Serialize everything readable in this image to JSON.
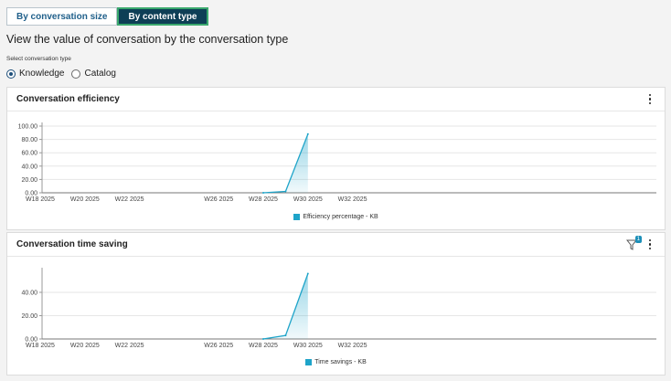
{
  "tabs": [
    {
      "label": "By conversation size",
      "active": false
    },
    {
      "label": "By content type",
      "active": true
    }
  ],
  "page_title": "View the value of conversation by the conversation type",
  "select_label": "Select conversation type",
  "radios": [
    {
      "label": "Knowledge",
      "checked": true
    },
    {
      "label": "Catalog",
      "checked": false
    }
  ],
  "cards": [
    {
      "title": "Conversation efficiency",
      "legend": "Efficiency percentage - KB",
      "filter_badge": null
    },
    {
      "title": "Conversation time saving",
      "legend": "Time savings - KB",
      "filter_badge": "1"
    }
  ],
  "colors": {
    "series": "#1ea4c9",
    "accent": "#0e3f56",
    "active_border": "#3aa86d"
  },
  "chart_data": [
    {
      "type": "area",
      "title": "Conversation efficiency",
      "x": [
        "W18 2025",
        "W19 2025",
        "W20 2025",
        "W21 2025",
        "W22 2025",
        "W23 2025",
        "W24 2025",
        "W25 2025",
        "W26 2025",
        "W27 2025",
        "W28 2025",
        "W29 2025",
        "W30 2025",
        "W31 2025",
        "W32 2025",
        "W33 2025"
      ],
      "x_tick_labels": [
        "W18 2025",
        "W20 2025",
        "W22 2025",
        "W26 2025",
        "W28 2025",
        "W30 2025",
        "W32 2025"
      ],
      "y_ticks": [
        "0.00",
        "20.00",
        "40.00",
        "60.00",
        "80.00",
        "100.00"
      ],
      "ylim": [
        0,
        100
      ],
      "grid": true,
      "legend_position": "bottom",
      "series": [
        {
          "name": "Efficiency percentage - KB",
          "points": [
            [
              "W28 2025",
              0
            ],
            [
              "W29 2025",
              2
            ],
            [
              "W30 2025",
              88
            ]
          ]
        }
      ]
    },
    {
      "type": "area",
      "title": "Conversation time saving",
      "x": [
        "W18 2025",
        "W19 2025",
        "W20 2025",
        "W21 2025",
        "W22 2025",
        "W23 2025",
        "W24 2025",
        "W25 2025",
        "W26 2025",
        "W27 2025",
        "W28 2025",
        "W29 2025",
        "W30 2025",
        "W31 2025",
        "W32 2025",
        "W33 2025"
      ],
      "x_tick_labels": [
        "W18 2025",
        "W20 2025",
        "W22 2025",
        "W26 2025",
        "W28 2025",
        "W30 2025",
        "W32 2025"
      ],
      "y_ticks": [
        "0.00",
        "20.00",
        "40.00"
      ],
      "ylim": [
        0,
        58
      ],
      "grid": true,
      "legend_position": "bottom",
      "series": [
        {
          "name": "Time savings - KB",
          "points": [
            [
              "W28 2025",
              0
            ],
            [
              "W29 2025",
              3
            ],
            [
              "W30 2025",
              56
            ]
          ]
        }
      ]
    }
  ]
}
